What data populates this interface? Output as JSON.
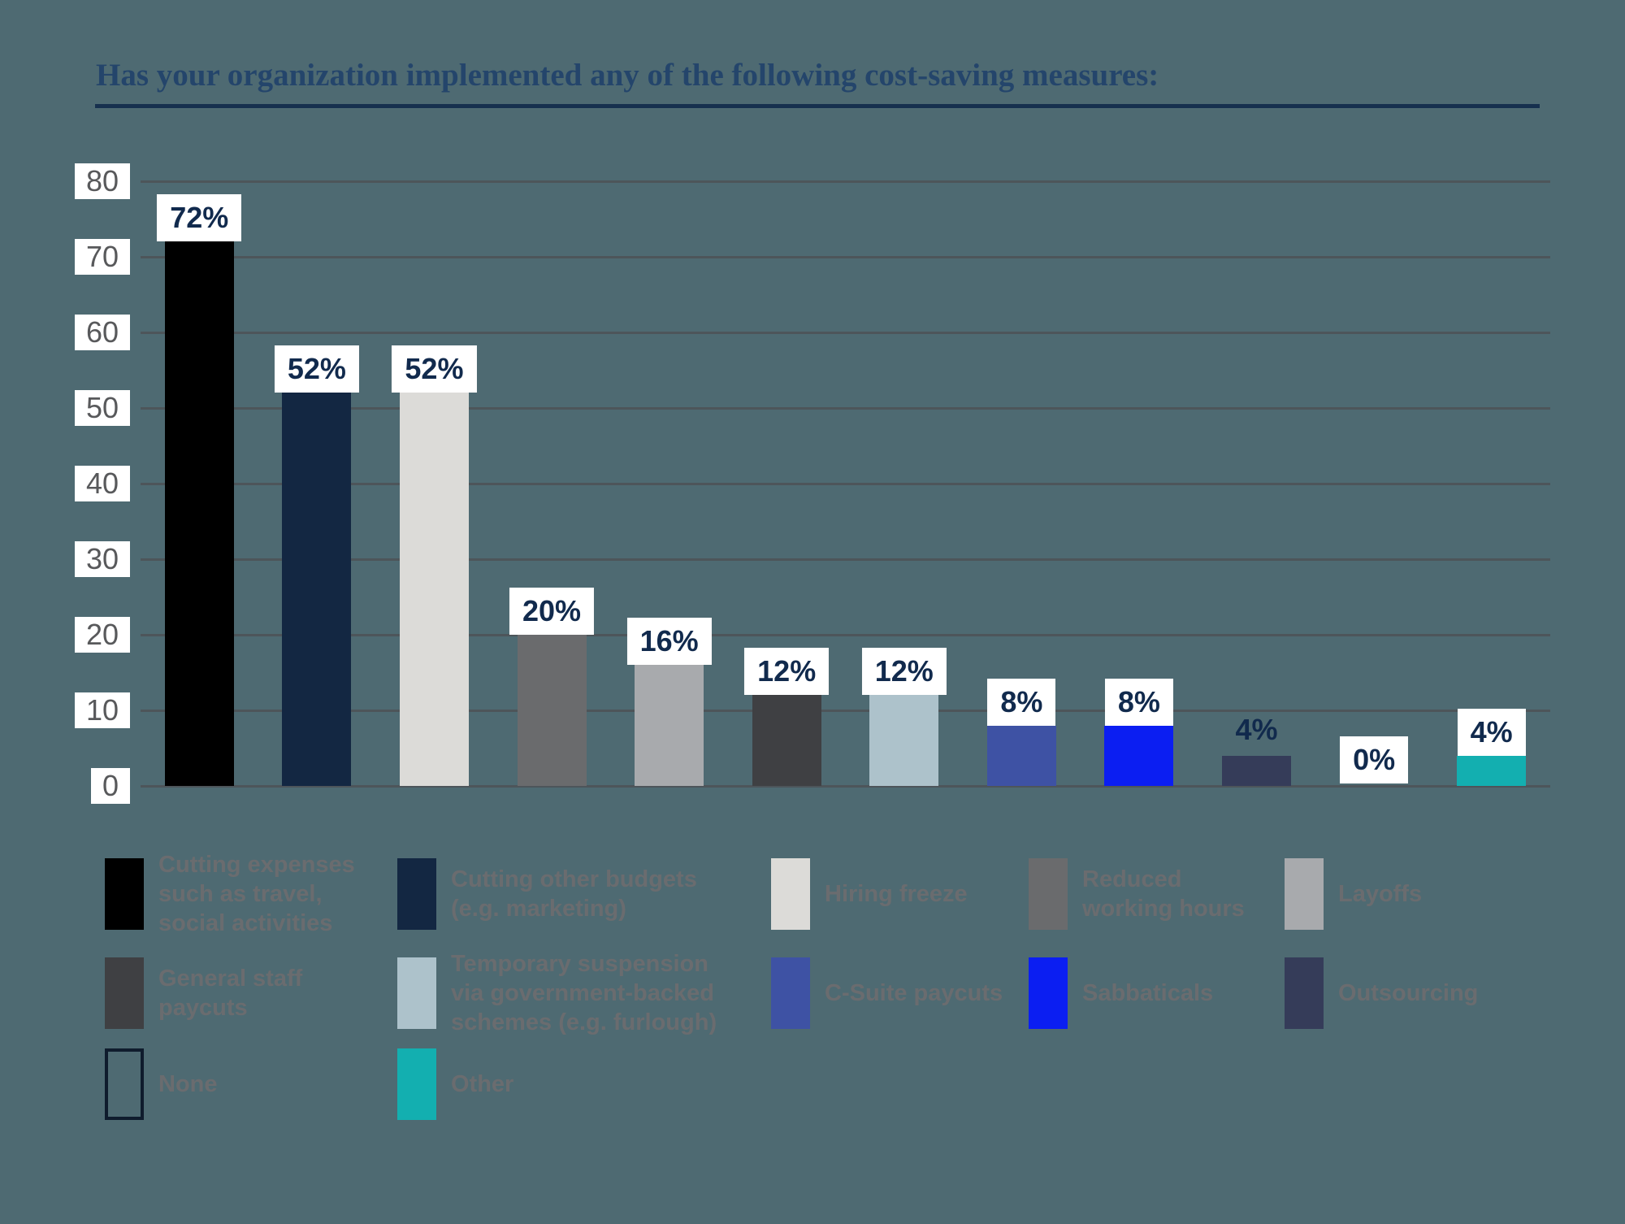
{
  "page": {
    "background_color": "#4e6a72"
  },
  "chart_data": {
    "type": "bar",
    "title": "Has your organization implemented any of the following cost-saving measures:",
    "unit": "%",
    "ylim": [
      0,
      80
    ],
    "yticks": [
      0,
      10,
      20,
      30,
      40,
      50,
      60,
      70,
      80
    ],
    "grid": true,
    "legend_position": "bottom",
    "categories": [
      "Cutting expenses such as travel, social activities",
      "Cutting other budgets (e.g. marketing)",
      "Hiring freeze",
      "Reduced working hours",
      "Layoffs",
      "General staff paycuts",
      "Temporary suspension via government-backed schemes (e.g. furlough)",
      "C-Suite paycuts",
      "Sabbaticals",
      "Outsourcing",
      "None",
      "Other"
    ],
    "values": [
      72,
      52,
      52,
      20,
      16,
      12,
      12,
      8,
      8,
      4,
      0,
      4
    ],
    "labels": [
      "72%",
      "52%",
      "52%",
      "20%",
      "16%",
      "12%",
      "12%",
      "8%",
      "8%",
      "4%",
      "0%",
      "4%"
    ],
    "colors": [
      "#000000",
      "#132742",
      "#dcdbd8",
      "#6a6b6d",
      "#a8aaad",
      "#3f4043",
      "#adc2cb",
      "#3e52a4",
      "#0b1ef2",
      "#353c59",
      "none",
      "#13afb0"
    ],
    "label_boxed": [
      true,
      true,
      true,
      true,
      true,
      true,
      true,
      true,
      true,
      false,
      true,
      true
    ]
  },
  "axis": {
    "tick_box_bg": "#ffffff",
    "tick_text_color": "#58595b",
    "grid_color": "#4d555a",
    "value_label_color": "#112a4d",
    "value_label_box_bg": "#ffffff"
  },
  "title_style": {
    "text_color": "#24456b",
    "rule_color": "#16304e"
  },
  "legend": {
    "text_color": "#6a6c6f",
    "rows": [
      [
        {
          "swatch": "#000000",
          "outline": false,
          "lines": [
            "Cutting expenses",
            "such as travel,",
            "social activities"
          ]
        },
        {
          "swatch": "#132742",
          "outline": false,
          "lines": [
            "Cutting other budgets",
            "(e.g. marketing)"
          ]
        },
        {
          "swatch": "#dcdbd8",
          "outline": false,
          "lines": [
            "Hiring freeze"
          ]
        },
        {
          "swatch": "#6a6b6d",
          "outline": false,
          "lines": [
            "Reduced",
            "working hours"
          ]
        },
        {
          "swatch": "#a8aaad",
          "outline": false,
          "lines": [
            "Layoffs"
          ]
        }
      ],
      [
        {
          "swatch": "#3f4043",
          "outline": false,
          "lines": [
            "General staff",
            "paycuts"
          ]
        },
        {
          "swatch": "#adc2cb",
          "outline": false,
          "lines": [
            "Temporary suspension",
            "via government-backed",
            "schemes (e.g. furlough)"
          ]
        },
        {
          "swatch": "#3e52a4",
          "outline": false,
          "lines": [
            "C-Suite paycuts"
          ]
        },
        {
          "swatch": "#0b1ef2",
          "outline": false,
          "lines": [
            "Sabbaticals"
          ]
        },
        {
          "swatch": "#353c59",
          "outline": false,
          "lines": [
            "Outsourcing"
          ]
        }
      ],
      [
        {
          "swatch": "none",
          "outline": true,
          "lines": [
            "None"
          ]
        },
        {
          "swatch": "#13afb0",
          "outline": false,
          "lines": [
            "Other"
          ]
        }
      ]
    ]
  }
}
